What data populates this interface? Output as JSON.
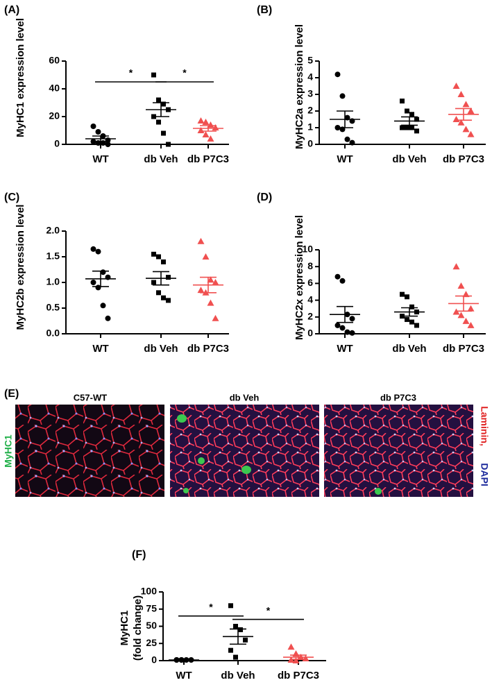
{
  "chart_data": [
    {
      "type": "dot",
      "panel": "(A)",
      "ylabel": [
        "MyHC1 expression level"
      ],
      "ylim": [
        0,
        60
      ],
      "yticks": [
        0,
        20,
        40,
        60
      ],
      "series": [
        {
          "name": "WT",
          "color": "#000000",
          "marker": "circle",
          "values": [
            13,
            9,
            6,
            3,
            2,
            1,
            1,
            0
          ],
          "mean": 4,
          "sem": 2
        },
        {
          "name": "db Veh",
          "color": "#000000",
          "marker": "square",
          "values": [
            50,
            32,
            29,
            25,
            20,
            16,
            8,
            0
          ],
          "mean": 25,
          "sem": 5
        },
        {
          "name": "db P7C3",
          "color": "#f05050",
          "marker": "triangle",
          "values": [
            17,
            16,
            14,
            12,
            10,
            7,
            4
          ],
          "mean": 11.5,
          "sem": 2
        }
      ],
      "significance": [
        {
          "label": "*",
          "from": 0,
          "to": 1,
          "y": 45
        },
        {
          "label": "*",
          "from": 1,
          "to": 2,
          "y": 45
        }
      ]
    },
    {
      "type": "dot",
      "panel": "(B)",
      "ylabel": [
        "MyHC2a expression level"
      ],
      "ylim": [
        0,
        5
      ],
      "yticks": [
        0,
        1,
        2,
        3,
        4,
        5
      ],
      "series": [
        {
          "name": "WT",
          "color": "#000000",
          "marker": "circle",
          "values": [
            4.2,
            2.9,
            1.6,
            1.4,
            1.0,
            0.9,
            0.3,
            0.1
          ],
          "mean": 1.5,
          "sem": 0.5
        },
        {
          "name": "db Veh",
          "color": "#000000",
          "marker": "square",
          "values": [
            2.6,
            2.0,
            1.8,
            1.5,
            1.0,
            1.0,
            1.0,
            0.8
          ],
          "mean": 1.4,
          "sem": 0.25
        },
        {
          "name": "db P7C3",
          "color": "#f05050",
          "marker": "triangle",
          "values": [
            3.5,
            3.0,
            2.4,
            2.0,
            1.5,
            1.3,
            0.9,
            0.6
          ],
          "mean": 1.8,
          "sem": 0.35
        }
      ]
    },
    {
      "type": "dot",
      "panel": "(C)",
      "ylabel": [
        "MyHC2b expression level"
      ],
      "ylim": [
        0,
        2
      ],
      "yticks": [
        {
          "value": 0,
          "label": "0.0"
        },
        0.5,
        {
          "value": 1,
          "label": "1.0"
        },
        1.5,
        {
          "value": 2,
          "label": "2.0"
        }
      ],
      "series": [
        {
          "name": "WT",
          "color": "#000000",
          "marker": "circle",
          "values": [
            1.65,
            1.6,
            1.2,
            1.1,
            1.0,
            0.9,
            0.55,
            0.3
          ],
          "mean": 1.07,
          "sem": 0.15
        },
        {
          "name": "db Veh",
          "color": "#000000",
          "marker": "square",
          "values": [
            1.55,
            1.5,
            1.4,
            1.1,
            1.0,
            0.8,
            0.7,
            0.65
          ],
          "mean": 1.08,
          "sem": 0.13
        },
        {
          "name": "db P7C3",
          "color": "#f05050",
          "marker": "triangle",
          "values": [
            1.8,
            1.5,
            1.05,
            1.0,
            0.85,
            0.8,
            0.6,
            0.3
          ],
          "mean": 0.95,
          "sem": 0.15
        }
      ]
    },
    {
      "type": "dot",
      "panel": "(D)",
      "ylabel": [
        "MyHC2x expression level"
      ],
      "ylim": [
        0,
        10
      ],
      "yticks": [
        0,
        2,
        4,
        6,
        8,
        10
      ],
      "series": [
        {
          "name": "WT",
          "color": "#000000",
          "marker": "circle",
          "values": [
            6.8,
            6.3,
            2.3,
            1.8,
            1.0,
            0.7,
            0.2,
            0.1
          ],
          "mean": 2.3,
          "sem": 0.95
        },
        {
          "name": "db Veh",
          "color": "#000000",
          "marker": "square",
          "values": [
            4.7,
            4.4,
            3.2,
            2.6,
            2.1,
            1.7,
            1.4,
            1.0
          ],
          "mean": 2.6,
          "sem": 0.5
        },
        {
          "name": "db P7C3",
          "color": "#f05050",
          "marker": "triangle",
          "values": [
            8.0,
            5.7,
            4.7,
            3.0,
            2.6,
            2.2,
            1.5,
            1.0
          ],
          "mean": 3.6,
          "sem": 0.9
        }
      ]
    },
    {
      "type": "dot",
      "panel": "(F)",
      "ylabel": [
        "MyHC1",
        "(fold change)"
      ],
      "ylim": [
        0,
        100
      ],
      "yticks": [
        0,
        25,
        50,
        75,
        100
      ],
      "series": [
        {
          "name": "WT",
          "color": "#000000",
          "marker": "circle",
          "values": [
            1,
            1,
            1,
            1,
            1,
            1
          ],
          "mean": 1,
          "sem": 0
        },
        {
          "name": "db Veh",
          "color": "#000000",
          "marker": "square",
          "values": [
            80,
            50,
            45,
            30,
            15,
            5
          ],
          "mean": 35,
          "sem": 11
        },
        {
          "name": "db P7C3",
          "color": "#f05050",
          "marker": "triangle",
          "values": [
            20,
            10,
            5,
            3,
            1,
            0
          ],
          "mean": 5,
          "sem": 3
        }
      ],
      "significance": [
        {
          "label": "*",
          "from": 0,
          "to": 1,
          "y": 65
        },
        {
          "label": "*",
          "from": 1,
          "to": 2,
          "y": 60
        }
      ]
    }
  ],
  "image_panel": {
    "panel": "(E)",
    "titles": [
      "C57-WT",
      "db Veh",
      "db P7C3"
    ],
    "left_label": "MyHC1",
    "right_labels": [
      "Laminin,",
      "DAPI"
    ]
  }
}
